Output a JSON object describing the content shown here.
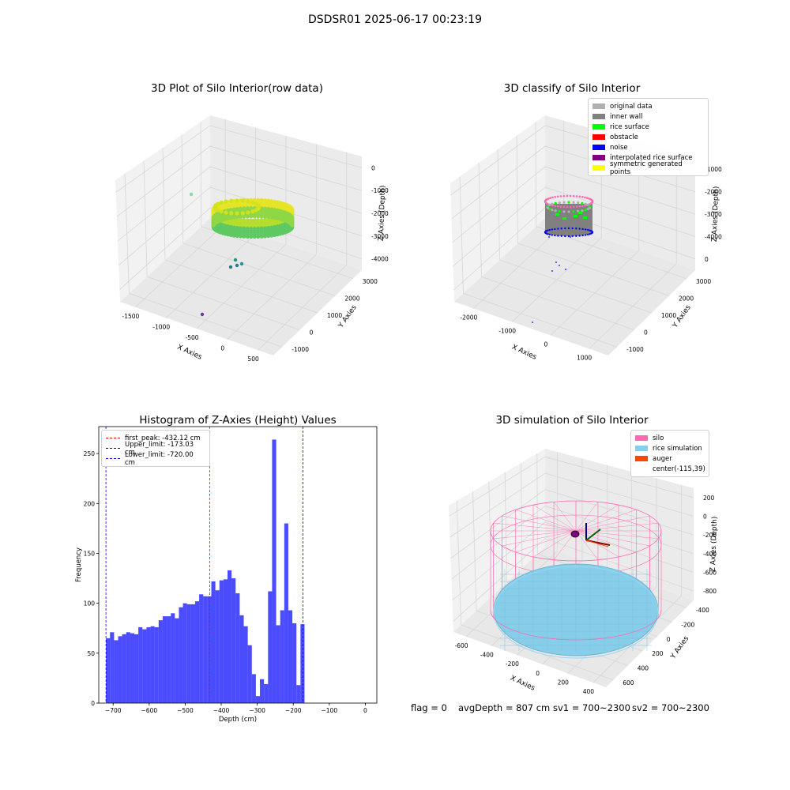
{
  "suptitle": "DSDSR01 2025-06-17 00:23:19",
  "footer": {
    "flag": "flag = 0",
    "avg_depth": "avgDepth = 807 cm",
    "sv1": "sv1 = 700~2300",
    "sv2": "sv2 = 700~2300"
  },
  "chart_data": [
    {
      "type": "scatter",
      "title": "3D Plot of Silo Interior(row data)",
      "xlabel": "X Axies",
      "ylabel": "Y Axies",
      "zlabel": "Z Axies (Depth)",
      "x_ticks": [
        "-1500",
        "-1000",
        "-500",
        "0",
        "500"
      ],
      "y_ticks": [
        "-1000",
        "0",
        "1000",
        "2000",
        "3000"
      ],
      "z_ticks": [
        "0",
        "-1000",
        "-2000",
        "-3000",
        "-4000"
      ],
      "colors": {
        "colormap": "viridis",
        "high": "#fde725",
        "mid": "#7ad151",
        "low": "#440154"
      }
    },
    {
      "type": "scatter",
      "title": "3D classify of Silo Interior",
      "xlabel": "X Axies",
      "ylabel": "Y Axies",
      "zlabel": "Z Axies (Depth)",
      "x_ticks": [
        "-2000",
        "-1000",
        "0",
        "1000"
      ],
      "y_ticks": [
        "-1000",
        "0",
        "1000",
        "2000",
        "3000"
      ],
      "z_ticks": [
        "-1000",
        "-2000",
        "-3000",
        "-4000",
        "0"
      ],
      "legend": [
        {
          "label": "original data",
          "color": "#b0b0b0"
        },
        {
          "label": "inner wall",
          "color": "#808080"
        },
        {
          "label": "rice surface",
          "color": "#00ff00"
        },
        {
          "label": "obstacle",
          "color": "#ff0000"
        },
        {
          "label": "noise",
          "color": "#0000ff"
        },
        {
          "label": "interpolated rice surface",
          "color": "#800080"
        },
        {
          "label": "symmetric generated points",
          "color": "#ffff00"
        }
      ]
    },
    {
      "type": "bar",
      "title": "Histogram of Z-Axies (Height) Values",
      "xlabel": "Depth (cm)",
      "ylabel": "Frequency",
      "xlim": [
        -740,
        32
      ],
      "ylim": [
        0,
        277
      ],
      "x_ticks": [
        -700,
        -600,
        -500,
        -400,
        -300,
        -200,
        -100,
        0
      ],
      "y_ticks": [
        0,
        50,
        100,
        150,
        200,
        250
      ],
      "bin_start": -720,
      "bin_width": 11.25,
      "values": [
        65,
        71,
        63,
        67,
        69,
        71,
        70,
        69,
        76,
        74,
        76,
        77,
        76,
        83,
        87,
        87,
        90,
        85,
        96,
        100,
        99,
        99,
        102,
        109,
        107,
        107,
        122,
        113,
        123,
        124,
        133,
        125,
        110,
        88,
        77,
        58,
        29,
        7,
        24,
        19,
        112,
        264,
        78,
        93,
        180,
        93,
        80,
        18,
        79
      ],
      "bar_color": "#0000ff",
      "lines": [
        {
          "label": "first_peak: -432.12 cm",
          "x": -432.12,
          "color": "#ff0000"
        },
        {
          "label": "Upper_limit: -173.03 cm",
          "x": -173.03,
          "color": "#0000ff"
        },
        {
          "label": "Lower_limit: -720.00 cm",
          "x": -720.0,
          "color": "#0000ff"
        }
      ]
    },
    {
      "type": "scatter",
      "title": "3D simulation of Silo Interior",
      "xlabel": "X Axies",
      "ylabel": "Y Axies",
      "zlabel": "Z Axies (Depth)",
      "x_ticks": [
        "-600",
        "-400",
        "-200",
        "0",
        "200",
        "400"
      ],
      "y_ticks": [
        "600",
        "400",
        "200",
        "0",
        "-200",
        "-400"
      ],
      "z_ticks": [
        "200",
        "0",
        "-200",
        "-400",
        "-600",
        "-800"
      ],
      "legend": [
        {
          "label": "silo",
          "color": "#ff69b4"
        },
        {
          "label": "rice simulation",
          "color": "#87ceeb"
        },
        {
          "label": "auger",
          "color": "#ff4500"
        },
        {
          "label": "center(-115,39)",
          "color": ""
        }
      ]
    }
  ]
}
